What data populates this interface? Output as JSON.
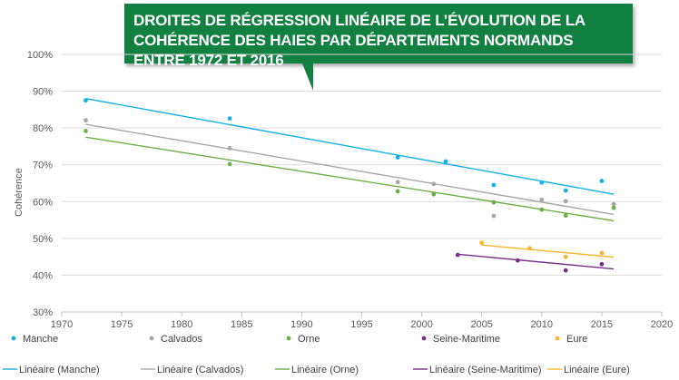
{
  "chart_data": {
    "type": "scatter",
    "title": "Droites de régression linéaire de l’évolution de la cohérence des haies par départements normands entre 1972 et 2016",
    "xlabel": "",
    "ylabel": "Cohérence",
    "xlim": [
      1970,
      2020
    ],
    "ylim": [
      0.3,
      1.0
    ],
    "x_ticks": [
      1970,
      1975,
      1980,
      1985,
      1990,
      1995,
      2000,
      2005,
      2010,
      2015,
      2020
    ],
    "x_tick_labels": [
      "1970",
      "1975",
      "1980",
      "1985",
      "1990",
      "1995",
      "2000",
      "2005",
      "2010",
      "2015",
      "2020"
    ],
    "y_ticks": [
      0.3,
      0.4,
      0.5,
      0.6,
      0.7,
      0.8,
      0.9,
      1.0
    ],
    "y_tick_labels": [
      "30%",
      "40%",
      "50%",
      "60%",
      "70%",
      "80%",
      "90%",
      "100%"
    ],
    "grid": "horizontal",
    "legend_position": "bottom",
    "series": [
      {
        "name": "Manche",
        "color": "#13b0e6",
        "x": [
          1972,
          1984,
          1998,
          2002,
          2006,
          2010,
          2012,
          2015
        ],
        "y": [
          0.875,
          0.826,
          0.72,
          0.709,
          0.645,
          0.652,
          0.63,
          0.656
        ]
      },
      {
        "name": "Calvados",
        "color": "#a6a6a6",
        "x": [
          1972,
          1984,
          1998,
          2001,
          2006,
          2006,
          2010,
          2012,
          2016
        ],
        "y": [
          0.821,
          0.745,
          0.653,
          0.648,
          0.598,
          0.561,
          0.605,
          0.601,
          0.593
        ]
      },
      {
        "name": "Orne",
        "color": "#6ab042",
        "x": [
          1972,
          1984,
          1998,
          2001,
          2006,
          2010,
          2012,
          2016
        ],
        "y": [
          0.792,
          0.702,
          0.628,
          0.62,
          0.598,
          0.578,
          0.562,
          0.583
        ]
      },
      {
        "name": "Seine-Maritime",
        "color": "#7a2e8c",
        "x": [
          2003,
          2008,
          2012,
          2015
        ],
        "y": [
          0.455,
          0.44,
          0.413,
          0.43
        ]
      },
      {
        "name": "Eure",
        "color": "#f8b62a",
        "x": [
          2005,
          2009,
          2012,
          2015
        ],
        "y": [
          0.488,
          0.473,
          0.45,
          0.46
        ]
      }
    ],
    "trendlines": [
      {
        "name": "Linéaire (Manche)",
        "color": "#13b0e6",
        "x": [
          1972,
          2016
        ],
        "y": [
          0.88,
          0.62
        ]
      },
      {
        "name": "Linéaire (Calvados)",
        "color": "#a6a6a6",
        "x": [
          1972,
          2016
        ],
        "y": [
          0.81,
          0.565
        ]
      },
      {
        "name": "Linéaire (Orne)",
        "color": "#6ab042",
        "x": [
          1972,
          2016
        ],
        "y": [
          0.775,
          0.548
        ]
      },
      {
        "name": "Linéaire (Seine-Maritime)",
        "color": "#7a2e8c",
        "x": [
          2003,
          2016
        ],
        "y": [
          0.457,
          0.417
        ]
      },
      {
        "name": "Linéaire (Eure)",
        "color": "#f8b62a",
        "x": [
          2005,
          2016
        ],
        "y": [
          0.482,
          0.449
        ]
      }
    ]
  }
}
